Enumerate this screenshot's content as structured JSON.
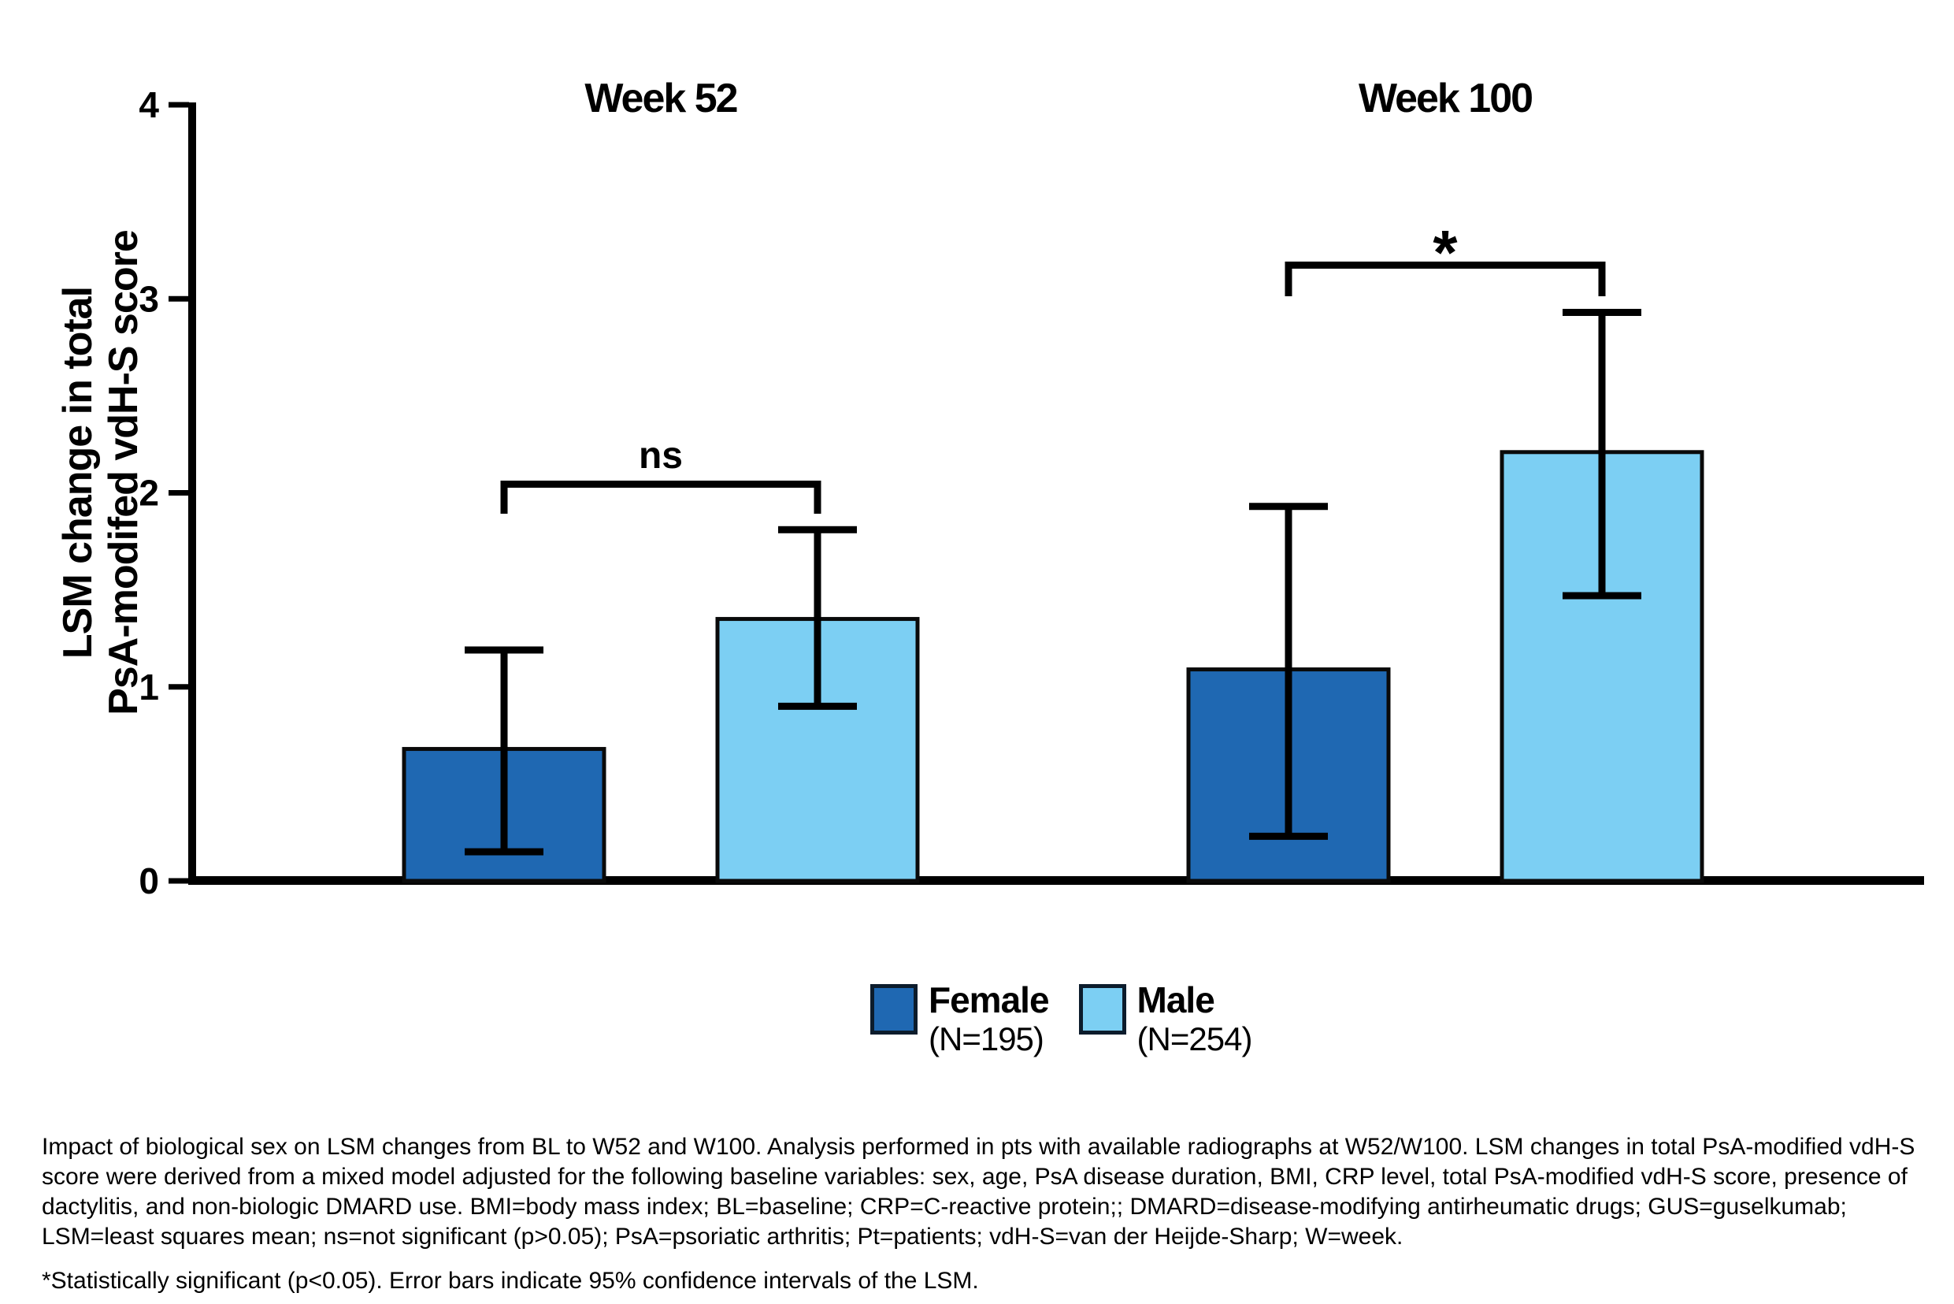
{
  "figure": {
    "group_titles": [
      "Week 52",
      "Week 100"
    ],
    "ylabel_line1": "LSM change in total",
    "ylabel_line2": "PsA-modifed vdH-S score"
  },
  "chart_data": {
    "type": "bar",
    "categories": [
      "Week 52",
      "Week 100"
    ],
    "series": [
      {
        "name": "Female",
        "n_label": "(N=195)",
        "color": "#1F68B2",
        "values": [
          0.68,
          1.09
        ],
        "ci_low": [
          0.15,
          0.23
        ],
        "ci_high": [
          1.19,
          1.93
        ]
      },
      {
        "name": "Male",
        "n_label": "(N=254)",
        "color": "#7CCFF3",
        "values": [
          1.35,
          2.21
        ],
        "ci_low": [
          0.9,
          1.47
        ],
        "ci_high": [
          1.81,
          2.93
        ]
      }
    ],
    "significance": [
      {
        "category": "Week 52",
        "label": "ns"
      },
      {
        "category": "Week 100",
        "label": "*"
      }
    ],
    "xlabel": "",
    "ylabel": "LSM change in total PsA-modifed vdH-S score",
    "yticks": [
      0,
      1,
      2,
      3,
      4
    ],
    "ylim": [
      0,
      4
    ],
    "grid": "off",
    "legend_position": "bottom-center",
    "error_bars": "95% confidence intervals of the LSM"
  },
  "footnotes": {
    "paragraph": "Impact of biological sex on LSM changes from BL to W52 and W100. Analysis performed in pts with available radiographs at W52/W100. LSM changes in total PsA-modified vdH-S score were derived from a mixed model adjusted for the following baseline variables: sex, age, PsA disease duration, BMI, CRP level, total PsA-modified vdH-S score, presence of dactylitis, and non-biologic DMARD use. BMI=body mass index; BL=baseline; CRP=C-reactive protein;; DMARD=disease-modifying antirheumatic drugs; GUS=guselkumab; LSM=least squares mean; ns=not significant (p>0.05); PsA=psoriatic arthritis; Pt=patients; vdH-S=van der Heijde-Sharp; W=week.",
    "significance_note": "*Statistically significant (p<0.05). Error bars indicate 95% confidence intervals of the LSM."
  },
  "colors": {
    "female_bar": "#1F68B2",
    "male_bar": "#7CCFF3",
    "bar_outline": "#0a0a0a",
    "axis": "#000000"
  }
}
